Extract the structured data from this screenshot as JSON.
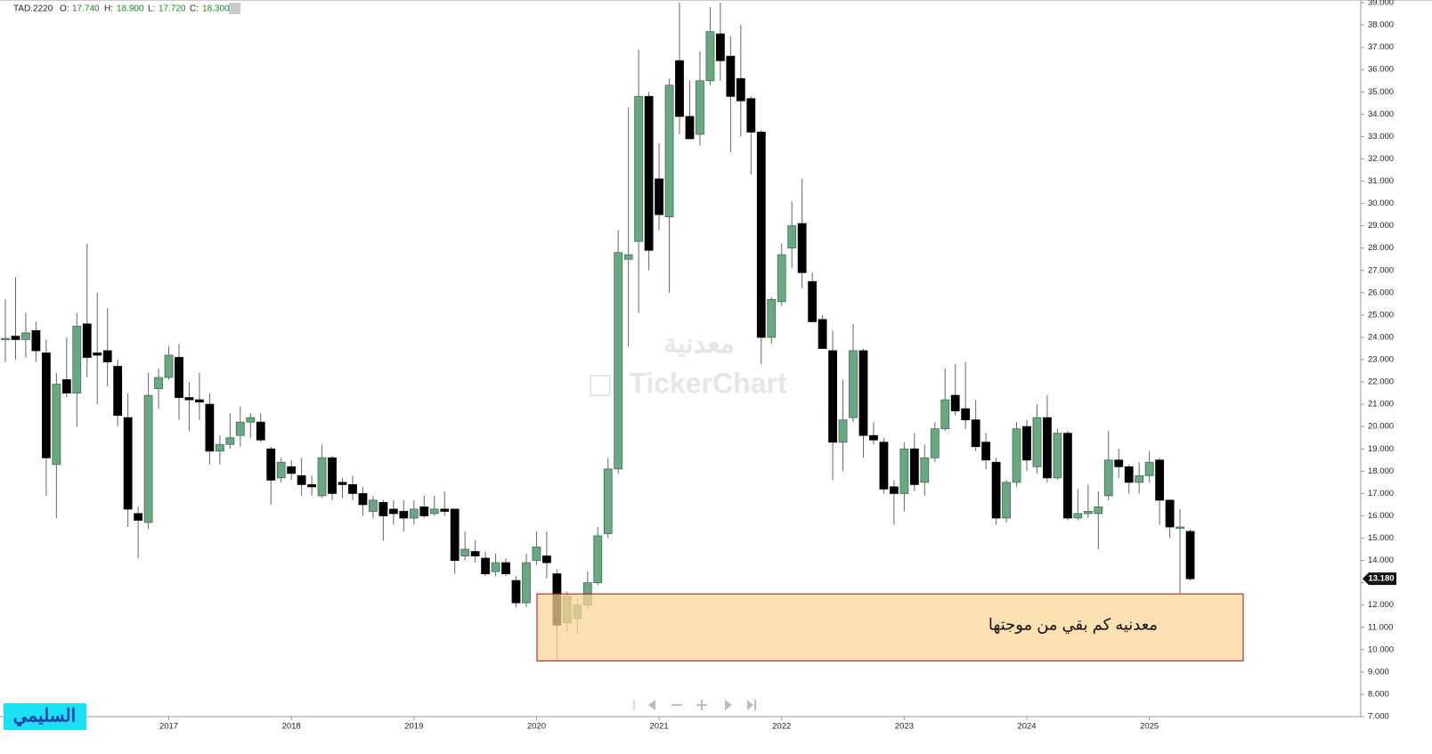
{
  "chart_data": {
    "type": "candlestick",
    "header": {
      "symbol": "TAD.2220",
      "fields": [
        {
          "key": "O:",
          "value": "17.740"
        },
        {
          "key": "H:",
          "value": "18.900"
        },
        {
          "key": "L:",
          "value": "17.720"
        },
        {
          "key": "C:",
          "value": "18.300"
        }
      ]
    },
    "watermark": {
      "name": "معدنية",
      "brand": "TickerChart"
    },
    "signature": "السليمي",
    "categories": [
      null,
      null,
      null,
      null,
      null,
      null,
      null,
      null,
      null,
      null,
      null,
      null,
      null,
      null,
      null,
      null,
      "2017",
      null,
      null,
      null,
      null,
      null,
      null,
      null,
      null,
      null,
      null,
      null,
      "2018",
      null,
      null,
      null,
      null,
      null,
      null,
      null,
      null,
      null,
      null,
      null,
      "2019",
      null,
      null,
      null,
      null,
      null,
      null,
      null,
      null,
      null,
      null,
      null,
      "2020",
      null,
      null,
      null,
      null,
      null,
      null,
      null,
      null,
      null,
      null,
      null,
      "2021",
      null,
      null,
      null,
      null,
      null,
      null,
      null,
      null,
      null,
      null,
      null,
      "2022",
      null,
      null,
      null,
      null,
      null,
      null,
      null,
      null,
      null,
      null,
      null,
      "2023",
      null,
      null,
      null,
      null,
      null,
      null,
      null,
      null,
      null,
      null,
      null,
      "2024",
      null,
      null,
      null,
      null,
      null,
      null,
      null,
      null,
      null,
      null,
      null,
      "2025",
      null,
      null,
      null,
      null
    ],
    "open": [
      23.9,
      24.05,
      23.9,
      24.3,
      23.3,
      18.3,
      22.1,
      21.5,
      24.6,
      23.3,
      23.4,
      22.7,
      20.4,
      16.1,
      15.7,
      21.7,
      22.2,
      23.1,
      21.3,
      21.2,
      21.0,
      18.9,
      19.2,
      19.6,
      20.2,
      20.2,
      19.0,
      17.7,
      18.2,
      17.8,
      17.4,
      16.9,
      18.6,
      17.5,
      17.4,
      17.0,
      16.2,
      16.6,
      16.3,
      16.2,
      15.9,
      16.4,
      16.1,
      16.3,
      16.3,
      14.2,
      14.4,
      14.1,
      13.5,
      13.9,
      13.1,
      12.1,
      14.0,
      14.2,
      13.4,
      11.2,
      11.4,
      12.0,
      13.0,
      15.2,
      18.1,
      27.5,
      28.3,
      34.8,
      31.1,
      29.4,
      36.4,
      33.9,
      33.1,
      35.5,
      37.6,
      36.6,
      35.6,
      34.7,
      33.2,
      24.0,
      25.6,
      28.0,
      29.1,
      26.5,
      24.8,
      23.4,
      19.3,
      20.4,
      23.4,
      19.6,
      19.3,
      17.3,
      17.0,
      19.0,
      17.5,
      18.6,
      19.9,
      21.4,
      20.8,
      20.3,
      19.3,
      18.4,
      15.9,
      17.5,
      20.0,
      18.2,
      20.4,
      17.7,
      19.7,
      15.9,
      16.1,
      16.1,
      16.9,
      18.5,
      18.2,
      17.5,
      17.8,
      18.5,
      16.7,
      15.45,
      15.3
    ],
    "high": [
      25.7,
      26.7,
      25.1,
      24.7,
      23.9,
      22.4,
      24.0,
      25.1,
      28.2,
      26.0,
      25.3,
      23.0,
      21.5,
      16.4,
      22.4,
      22.6,
      23.6,
      23.7,
      22.0,
      22.4,
      21.5,
      19.6,
      20.6,
      20.9,
      20.6,
      20.6,
      19.1,
      18.6,
      18.5,
      18.6,
      17.8,
      19.2,
      18.7,
      17.7,
      17.8,
      17.3,
      16.9,
      16.7,
      16.7,
      16.7,
      16.7,
      16.9,
      16.9,
      17.1,
      16.3,
      15.3,
      14.9,
      14.4,
      14.3,
      14.1,
      13.3,
      14.3,
      15.3,
      15.3,
      13.6,
      12.6,
      12.3,
      13.5,
      15.5,
      18.6,
      28.8,
      34.3,
      36.9,
      35.0,
      32.7,
      35.6,
      39.0,
      35.5,
      36.8,
      38.8,
      39.0,
      37.5,
      38.0,
      34.8,
      33.3,
      25.8,
      28.2,
      30.1,
      31.1,
      26.9,
      25.0,
      24.3,
      22.1,
      24.6,
      23.5,
      20.2,
      19.5,
      17.6,
      19.3,
      19.7,
      19.2,
      20.2,
      22.6,
      22.8,
      22.9,
      21.2,
      19.7,
      18.6,
      17.6,
      20.2,
      20.3,
      21.0,
      21.4,
      19.9,
      19.8,
      17.2,
      17.4,
      17.1,
      19.8,
      19.0,
      18.3,
      18.4,
      18.9,
      18.6,
      16.7,
      16.3,
      15.4
    ],
    "low": [
      22.9,
      23.0,
      23.1,
      22.9,
      16.9,
      15.9,
      21.3,
      20.0,
      22.2,
      21.0,
      21.8,
      20.0,
      15.5,
      14.1,
      15.4,
      20.8,
      22.1,
      20.3,
      19.8,
      20.3,
      18.3,
      18.3,
      19.0,
      19.1,
      19.5,
      19.3,
      16.5,
      17.5,
      17.6,
      16.9,
      16.9,
      16.8,
      16.7,
      16.8,
      16.7,
      16.0,
      15.9,
      14.9,
      15.6,
      15.3,
      15.6,
      15.9,
      16.0,
      16.0,
      13.4,
      14.0,
      13.9,
      13.3,
      13.3,
      13.3,
      11.9,
      11.9,
      13.8,
      13.2,
      9.5,
      10.8,
      10.7,
      11.8,
      12.9,
      15.0,
      17.9,
      23.6,
      25.1,
      27.0,
      28.8,
      26.0,
      33.1,
      32.9,
      32.6,
      35.3,
      35.5,
      32.3,
      33.0,
      31.3,
      22.8,
      23.7,
      25.4,
      27.1,
      26.2,
      24.7,
      23.5,
      17.6,
      18.0,
      20.2,
      18.6,
      19.2,
      17.0,
      15.6,
      16.2,
      17.1,
      16.9,
      18.4,
      19.8,
      20.5,
      19.9,
      18.9,
      18.1,
      15.6,
      15.7,
      17.3,
      18.0,
      17.9,
      17.5,
      17.6,
      15.8,
      15.8,
      15.9,
      14.5,
      16.7,
      17.7,
      17.0,
      17.0,
      17.5,
      15.6,
      15.0,
      12.5,
      13.1
    ],
    "close": [
      23.95,
      23.9,
      24.2,
      23.4,
      18.6,
      21.9,
      21.5,
      24.5,
      23.1,
      23.2,
      22.9,
      20.5,
      16.3,
      15.8,
      21.4,
      22.2,
      23.2,
      21.3,
      21.2,
      21.1,
      18.9,
      19.2,
      19.5,
      20.2,
      20.4,
      19.4,
      17.6,
      18.4,
      17.9,
      17.4,
      17.3,
      18.6,
      17.0,
      17.4,
      17.0,
      16.5,
      16.7,
      16.0,
      16.1,
      15.9,
      16.3,
      16.0,
      16.3,
      16.2,
      14.0,
      14.5,
      14.2,
      13.4,
      13.9,
      13.4,
      12.1,
      13.9,
      14.6,
      13.9,
      11.1,
      12.4,
      12.0,
      13.0,
      15.1,
      18.1,
      27.8,
      27.7,
      34.8,
      27.9,
      29.5,
      35.3,
      33.9,
      32.9,
      35.5,
      37.7,
      36.4,
      34.8,
      34.6,
      33.2,
      24.0,
      25.7,
      27.7,
      29.0,
      26.9,
      24.7,
      23.5,
      19.3,
      20.3,
      23.4,
      19.6,
      19.4,
      17.2,
      17.0,
      19.0,
      17.4,
      18.6,
      19.9,
      21.2,
      20.7,
      20.3,
      19.1,
      18.5,
      15.9,
      17.5,
      19.9,
      18.5,
      20.4,
      17.7,
      19.7,
      15.9,
      16.1,
      16.2,
      16.4,
      18.5,
      18.2,
      17.5,
      17.8,
      18.4,
      16.7,
      15.5,
      15.5,
      13.18
    ],
    "up_color": "#6aa882",
    "down_color": "#000000",
    "ylim": [
      7,
      39
    ],
    "yticks": [
      {
        "value": 7,
        "label": "7.000"
      },
      {
        "value": 8,
        "label": "8.000"
      },
      {
        "value": 9,
        "label": "9.000"
      },
      {
        "value": 10,
        "label": "10.000"
      },
      {
        "value": 11,
        "label": "11.000"
      },
      {
        "value": 12,
        "label": "12.000"
      },
      {
        "value": 13,
        "label": "13.000"
      },
      {
        "value": 14,
        "label": "14.000"
      },
      {
        "value": 15,
        "label": "15.000"
      },
      {
        "value": 16,
        "label": "16.000"
      },
      {
        "value": 17,
        "label": "17.000"
      },
      {
        "value": 18,
        "label": "18.000"
      },
      {
        "value": 19,
        "label": "19.000"
      },
      {
        "value": 20,
        "label": "20.000"
      },
      {
        "value": 21,
        "label": "21.000"
      },
      {
        "value": 22,
        "label": "22.000"
      },
      {
        "value": 23,
        "label": "23.000"
      },
      {
        "value": 24,
        "label": "24.000"
      },
      {
        "value": 25,
        "label": "25.000"
      },
      {
        "value": 26,
        "label": "26.000"
      },
      {
        "value": 27,
        "label": "27.000"
      },
      {
        "value": 28,
        "label": "28.000"
      },
      {
        "value": 29,
        "label": "29.000"
      },
      {
        "value": 30,
        "label": "30.000"
      },
      {
        "value": 31,
        "label": "31.000"
      },
      {
        "value": 32,
        "label": "32.000"
      },
      {
        "value": 33,
        "label": "33.000"
      },
      {
        "value": 34,
        "label": "34.000"
      },
      {
        "value": 35,
        "label": "35.000"
      },
      {
        "value": 36,
        "label": "36.000"
      },
      {
        "value": 37,
        "label": "37.000"
      },
      {
        "value": 38,
        "label": "38.000"
      },
      {
        "value": 39,
        "label": "39.000"
      }
    ],
    "last_price": {
      "value": 13.18,
      "label": "13.180"
    },
    "zone": {
      "range": [
        9.5,
        12.5
      ],
      "label": "معدنيه كم بقي من موجتها"
    }
  }
}
